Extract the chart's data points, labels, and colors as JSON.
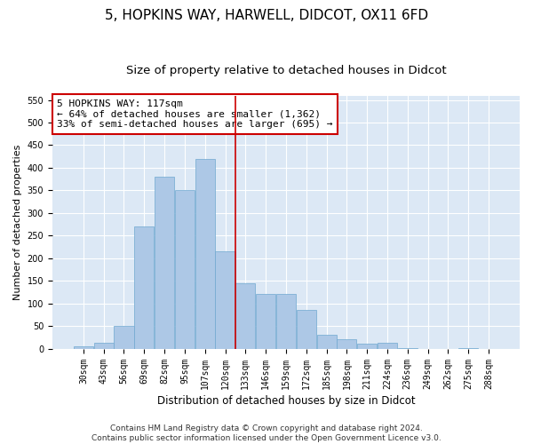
{
  "title1": "5, HOPKINS WAY, HARWELL, DIDCOT, OX11 6FD",
  "title2": "Size of property relative to detached houses in Didcot",
  "xlabel": "Distribution of detached houses by size in Didcot",
  "ylabel": "Number of detached properties",
  "categories": [
    "30sqm",
    "43sqm",
    "56sqm",
    "69sqm",
    "82sqm",
    "95sqm",
    "107sqm",
    "120sqm",
    "133sqm",
    "146sqm",
    "159sqm",
    "172sqm",
    "185sqm",
    "198sqm",
    "211sqm",
    "224sqm",
    "236sqm",
    "249sqm",
    "262sqm",
    "275sqm",
    "288sqm"
  ],
  "values": [
    5,
    12,
    50,
    270,
    380,
    350,
    420,
    215,
    145,
    120,
    120,
    85,
    30,
    20,
    10,
    12,
    2,
    0,
    0,
    2,
    0
  ],
  "bar_color": "#adc8e6",
  "bar_edge_color": "#6fa8d0",
  "bar_width": 0.97,
  "vline_x": 7.5,
  "vline_color": "#cc0000",
  "annotation_text": "5 HOPKINS WAY: 117sqm\n← 64% of detached houses are smaller (1,362)\n33% of semi-detached houses are larger (695) →",
  "annotation_box_color": "#ffffff",
  "annotation_box_edge": "#cc0000",
  "ylim": [
    0,
    560
  ],
  "yticks": [
    0,
    50,
    100,
    150,
    200,
    250,
    300,
    350,
    400,
    450,
    500,
    550
  ],
  "bg_color": "#dce8f5",
  "grid_color": "#ffffff",
  "footer": "Contains HM Land Registry data © Crown copyright and database right 2024.\nContains public sector information licensed under the Open Government Licence v3.0.",
  "title1_fontsize": 11,
  "title2_fontsize": 9.5,
  "xlabel_fontsize": 8.5,
  "ylabel_fontsize": 8,
  "tick_fontsize": 7,
  "annotation_fontsize": 8,
  "footer_fontsize": 6.5
}
